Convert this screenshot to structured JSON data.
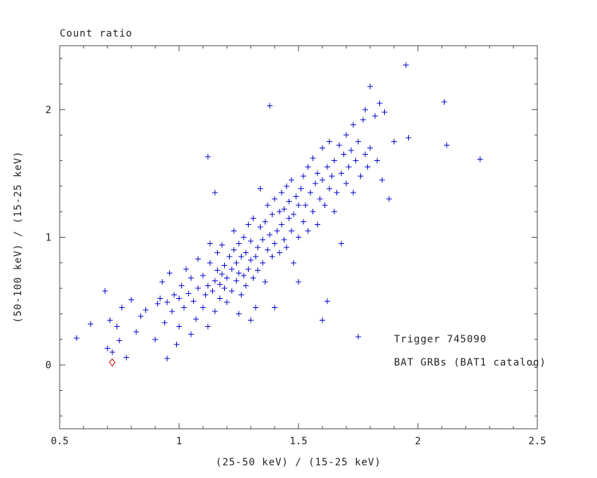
{
  "figure": {
    "title": "Count ratio",
    "xlabel": "(25-50 keV) / (15-25 keV)",
    "ylabel": "(50-100 keV) / (15-25 keV)"
  },
  "chart_data": {
    "type": "scatter",
    "title": "Count ratio",
    "xlabel": "(25-50 keV) / (15-25 keV)",
    "ylabel": "(50-100 keV) / (15-25 keV)",
    "xlim": [
      0.5,
      2.5
    ],
    "ylim": [
      -0.5,
      2.5
    ],
    "grid": false,
    "legend_position": "none",
    "frame_color": "#444444",
    "x_major_ticks": [
      0.5,
      1.0,
      1.5,
      2.0,
      2.5
    ],
    "x_tick_labels": [
      "0.5",
      "1",
      "1.5",
      "2",
      "2.5"
    ],
    "x_minor_step": 0.1,
    "y_major_ticks": [
      0,
      1,
      2
    ],
    "y_tick_labels": [
      "0",
      "1",
      "2"
    ],
    "y_minor_step": 0.2,
    "series": [
      {
        "name": "BAT GRBs (BAT1 catalog)",
        "marker": "plus",
        "color": "#0000cd",
        "points": [
          [
            0.57,
            0.21
          ],
          [
            0.63,
            0.32
          ],
          [
            0.69,
            0.58
          ],
          [
            0.7,
            0.13
          ],
          [
            0.71,
            0.35
          ],
          [
            0.72,
            0.1
          ],
          [
            0.74,
            0.3
          ],
          [
            0.75,
            0.19
          ],
          [
            0.76,
            0.45
          ],
          [
            0.78,
            0.06
          ],
          [
            0.8,
            0.51
          ],
          [
            0.82,
            0.26
          ],
          [
            0.84,
            0.38
          ],
          [
            0.86,
            0.43
          ],
          [
            0.9,
            0.2
          ],
          [
            0.91,
            0.48
          ],
          [
            0.92,
            0.52
          ],
          [
            0.93,
            0.65
          ],
          [
            0.94,
            0.33
          ],
          [
            0.95,
            0.05
          ],
          [
            0.95,
            0.49
          ],
          [
            0.96,
            0.72
          ],
          [
            0.97,
            0.42
          ],
          [
            0.98,
            0.55
          ],
          [
            0.99,
            0.16
          ],
          [
            1.0,
            0.3
          ],
          [
            1.0,
            0.52
          ],
          [
            1.01,
            0.62
          ],
          [
            1.02,
            0.45
          ],
          [
            1.03,
            0.75
          ],
          [
            1.04,
            0.56
          ],
          [
            1.05,
            0.24
          ],
          [
            1.05,
            0.68
          ],
          [
            1.06,
            0.5
          ],
          [
            1.07,
            0.36
          ],
          [
            1.08,
            0.6
          ],
          [
            1.08,
            0.83
          ],
          [
            1.1,
            0.45
          ],
          [
            1.1,
            0.7
          ],
          [
            1.11,
            0.55
          ],
          [
            1.12,
            0.3
          ],
          [
            1.12,
            0.62
          ],
          [
            1.12,
            1.63
          ],
          [
            1.13,
            0.8
          ],
          [
            1.13,
            0.95
          ],
          [
            1.14,
            0.58
          ],
          [
            1.15,
            0.42
          ],
          [
            1.15,
            0.66
          ],
          [
            1.15,
            1.35
          ],
          [
            1.16,
            0.74
          ],
          [
            1.16,
            0.88
          ],
          [
            1.17,
            0.52
          ],
          [
            1.17,
            0.63
          ],
          [
            1.18,
            0.71
          ],
          [
            1.18,
            0.94
          ],
          [
            1.19,
            0.6
          ],
          [
            1.19,
            0.78
          ],
          [
            1.2,
            0.49
          ],
          [
            1.2,
            0.68
          ],
          [
            1.21,
            0.85
          ],
          [
            1.22,
            0.58
          ],
          [
            1.22,
            0.75
          ],
          [
            1.23,
            0.9
          ],
          [
            1.23,
            1.05
          ],
          [
            1.24,
            0.66
          ],
          [
            1.24,
            0.8
          ],
          [
            1.25,
            0.4
          ],
          [
            1.25,
            0.72
          ],
          [
            1.25,
            0.95
          ],
          [
            1.26,
            0.55
          ],
          [
            1.26,
            0.85
          ],
          [
            1.27,
            0.7
          ],
          [
            1.27,
            1.0
          ],
          [
            1.28,
            0.62
          ],
          [
            1.28,
            0.88
          ],
          [
            1.29,
            0.75
          ],
          [
            1.29,
            1.1
          ],
          [
            1.3,
            0.35
          ],
          [
            1.3,
            0.82
          ],
          [
            1.3,
            0.97
          ],
          [
            1.31,
            0.68
          ],
          [
            1.31,
            1.15
          ],
          [
            1.32,
            0.45
          ],
          [
            1.32,
            0.85
          ],
          [
            1.33,
            0.74
          ],
          [
            1.33,
            0.92
          ],
          [
            1.34,
            1.08
          ],
          [
            1.34,
            1.38
          ],
          [
            1.35,
            0.8
          ],
          [
            1.35,
            0.98
          ],
          [
            1.36,
            0.65
          ],
          [
            1.36,
            1.12
          ],
          [
            1.37,
            0.9
          ],
          [
            1.37,
            1.25
          ],
          [
            1.38,
            1.02
          ],
          [
            1.38,
            2.03
          ],
          [
            1.39,
            0.85
          ],
          [
            1.39,
            1.18
          ],
          [
            1.4,
            0.45
          ],
          [
            1.4,
            0.95
          ],
          [
            1.4,
            1.3
          ],
          [
            1.41,
            1.05
          ],
          [
            1.42,
            0.88
          ],
          [
            1.42,
            1.2
          ],
          [
            1.43,
            1.1
          ],
          [
            1.43,
            1.35
          ],
          [
            1.44,
            0.98
          ],
          [
            1.44,
            1.22
          ],
          [
            1.45,
            0.92
          ],
          [
            1.45,
            1.4
          ],
          [
            1.46,
            1.15
          ],
          [
            1.46,
            1.28
          ],
          [
            1.47,
            1.05
          ],
          [
            1.47,
            1.45
          ],
          [
            1.48,
            0.8
          ],
          [
            1.48,
            1.18
          ],
          [
            1.49,
            1.32
          ],
          [
            1.5,
            0.65
          ],
          [
            1.5,
            1.0
          ],
          [
            1.5,
            1.25
          ],
          [
            1.51,
            1.38
          ],
          [
            1.52,
            1.12
          ],
          [
            1.52,
            1.48
          ],
          [
            1.53,
            1.25
          ],
          [
            1.54,
            1.05
          ],
          [
            1.54,
            1.55
          ],
          [
            1.55,
            1.35
          ],
          [
            1.56,
            1.2
          ],
          [
            1.56,
            1.62
          ],
          [
            1.57,
            1.42
          ],
          [
            1.58,
            1.1
          ],
          [
            1.58,
            1.5
          ],
          [
            1.59,
            1.3
          ],
          [
            1.6,
            0.35
          ],
          [
            1.6,
            1.45
          ],
          [
            1.6,
            1.7
          ],
          [
            1.61,
            1.25
          ],
          [
            1.62,
            0.5
          ],
          [
            1.62,
            1.55
          ],
          [
            1.63,
            1.38
          ],
          [
            1.63,
            1.75
          ],
          [
            1.64,
            1.48
          ],
          [
            1.65,
            1.2
          ],
          [
            1.65,
            1.6
          ],
          [
            1.66,
            1.35
          ],
          [
            1.67,
            1.72
          ],
          [
            1.68,
            0.95
          ],
          [
            1.68,
            1.5
          ],
          [
            1.69,
            1.65
          ],
          [
            1.7,
            1.42
          ],
          [
            1.7,
            1.8
          ],
          [
            1.71,
            1.55
          ],
          [
            1.72,
            1.68
          ],
          [
            1.73,
            1.35
          ],
          [
            1.73,
            1.88
          ],
          [
            1.74,
            1.6
          ],
          [
            1.75,
            0.22
          ],
          [
            1.75,
            1.75
          ],
          [
            1.76,
            1.48
          ],
          [
            1.77,
            1.92
          ],
          [
            1.78,
            1.65
          ],
          [
            1.78,
            2.0
          ],
          [
            1.79,
            1.55
          ],
          [
            1.8,
            1.7
          ],
          [
            1.8,
            2.18
          ],
          [
            1.82,
            1.95
          ],
          [
            1.83,
            1.6
          ],
          [
            1.84,
            2.05
          ],
          [
            1.85,
            1.45
          ],
          [
            1.86,
            1.98
          ],
          [
            1.88,
            1.3
          ],
          [
            1.9,
            1.75
          ],
          [
            1.95,
            2.35
          ],
          [
            1.96,
            1.78
          ],
          [
            2.11,
            2.06
          ],
          [
            2.12,
            1.72
          ],
          [
            2.26,
            1.61
          ]
        ]
      },
      {
        "name": "Trigger 745090",
        "marker": "diamond",
        "color": "#cd0000",
        "points": [
          [
            0.72,
            0.02
          ]
        ]
      }
    ],
    "annotations": [
      {
        "label": "Trigger 745090",
        "x": 1.9,
        "y": 0.18,
        "color": "#cd0000"
      },
      {
        "label": "BAT GRBs (BAT1 catalog)",
        "x": 1.9,
        "y": 0.0,
        "color": "#0000cd"
      }
    ]
  }
}
